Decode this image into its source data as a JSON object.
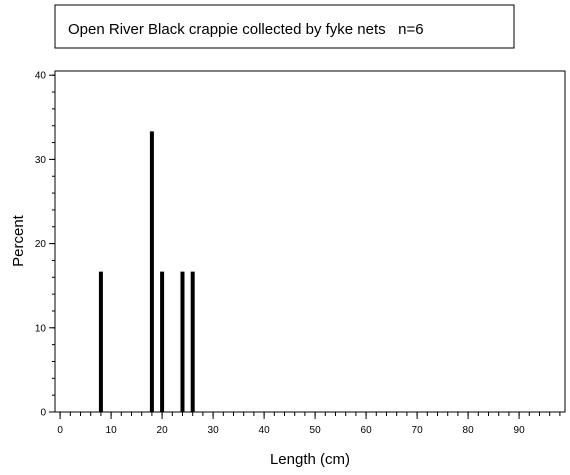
{
  "chart_data": {
    "type": "bar",
    "title": "Open River Black crappie collected by fyke nets   n=6",
    "xlabel": "Length (cm)",
    "ylabel": "Percent",
    "x": [
      8,
      18,
      20,
      24,
      26
    ],
    "values": [
      16.67,
      33.33,
      16.67,
      16.67,
      16.67
    ],
    "xlim": [
      -1,
      99
    ],
    "ylim": [
      0,
      40.5
    ],
    "x_ticks": [
      0,
      10,
      20,
      30,
      40,
      50,
      60,
      70,
      80,
      90
    ],
    "x_tick_labels": [
      "0",
      "10",
      "20",
      "30",
      "40",
      "50",
      "60",
      "70",
      "80",
      "90"
    ],
    "y_ticks": [
      0,
      10,
      20,
      30,
      40
    ],
    "y_tick_labels": [
      "0",
      "10",
      "20",
      "30",
      "40"
    ],
    "x_minor_step": 2,
    "y_minor_step": 2,
    "grid": false,
    "legend": "none",
    "bar_color": "#000000"
  }
}
